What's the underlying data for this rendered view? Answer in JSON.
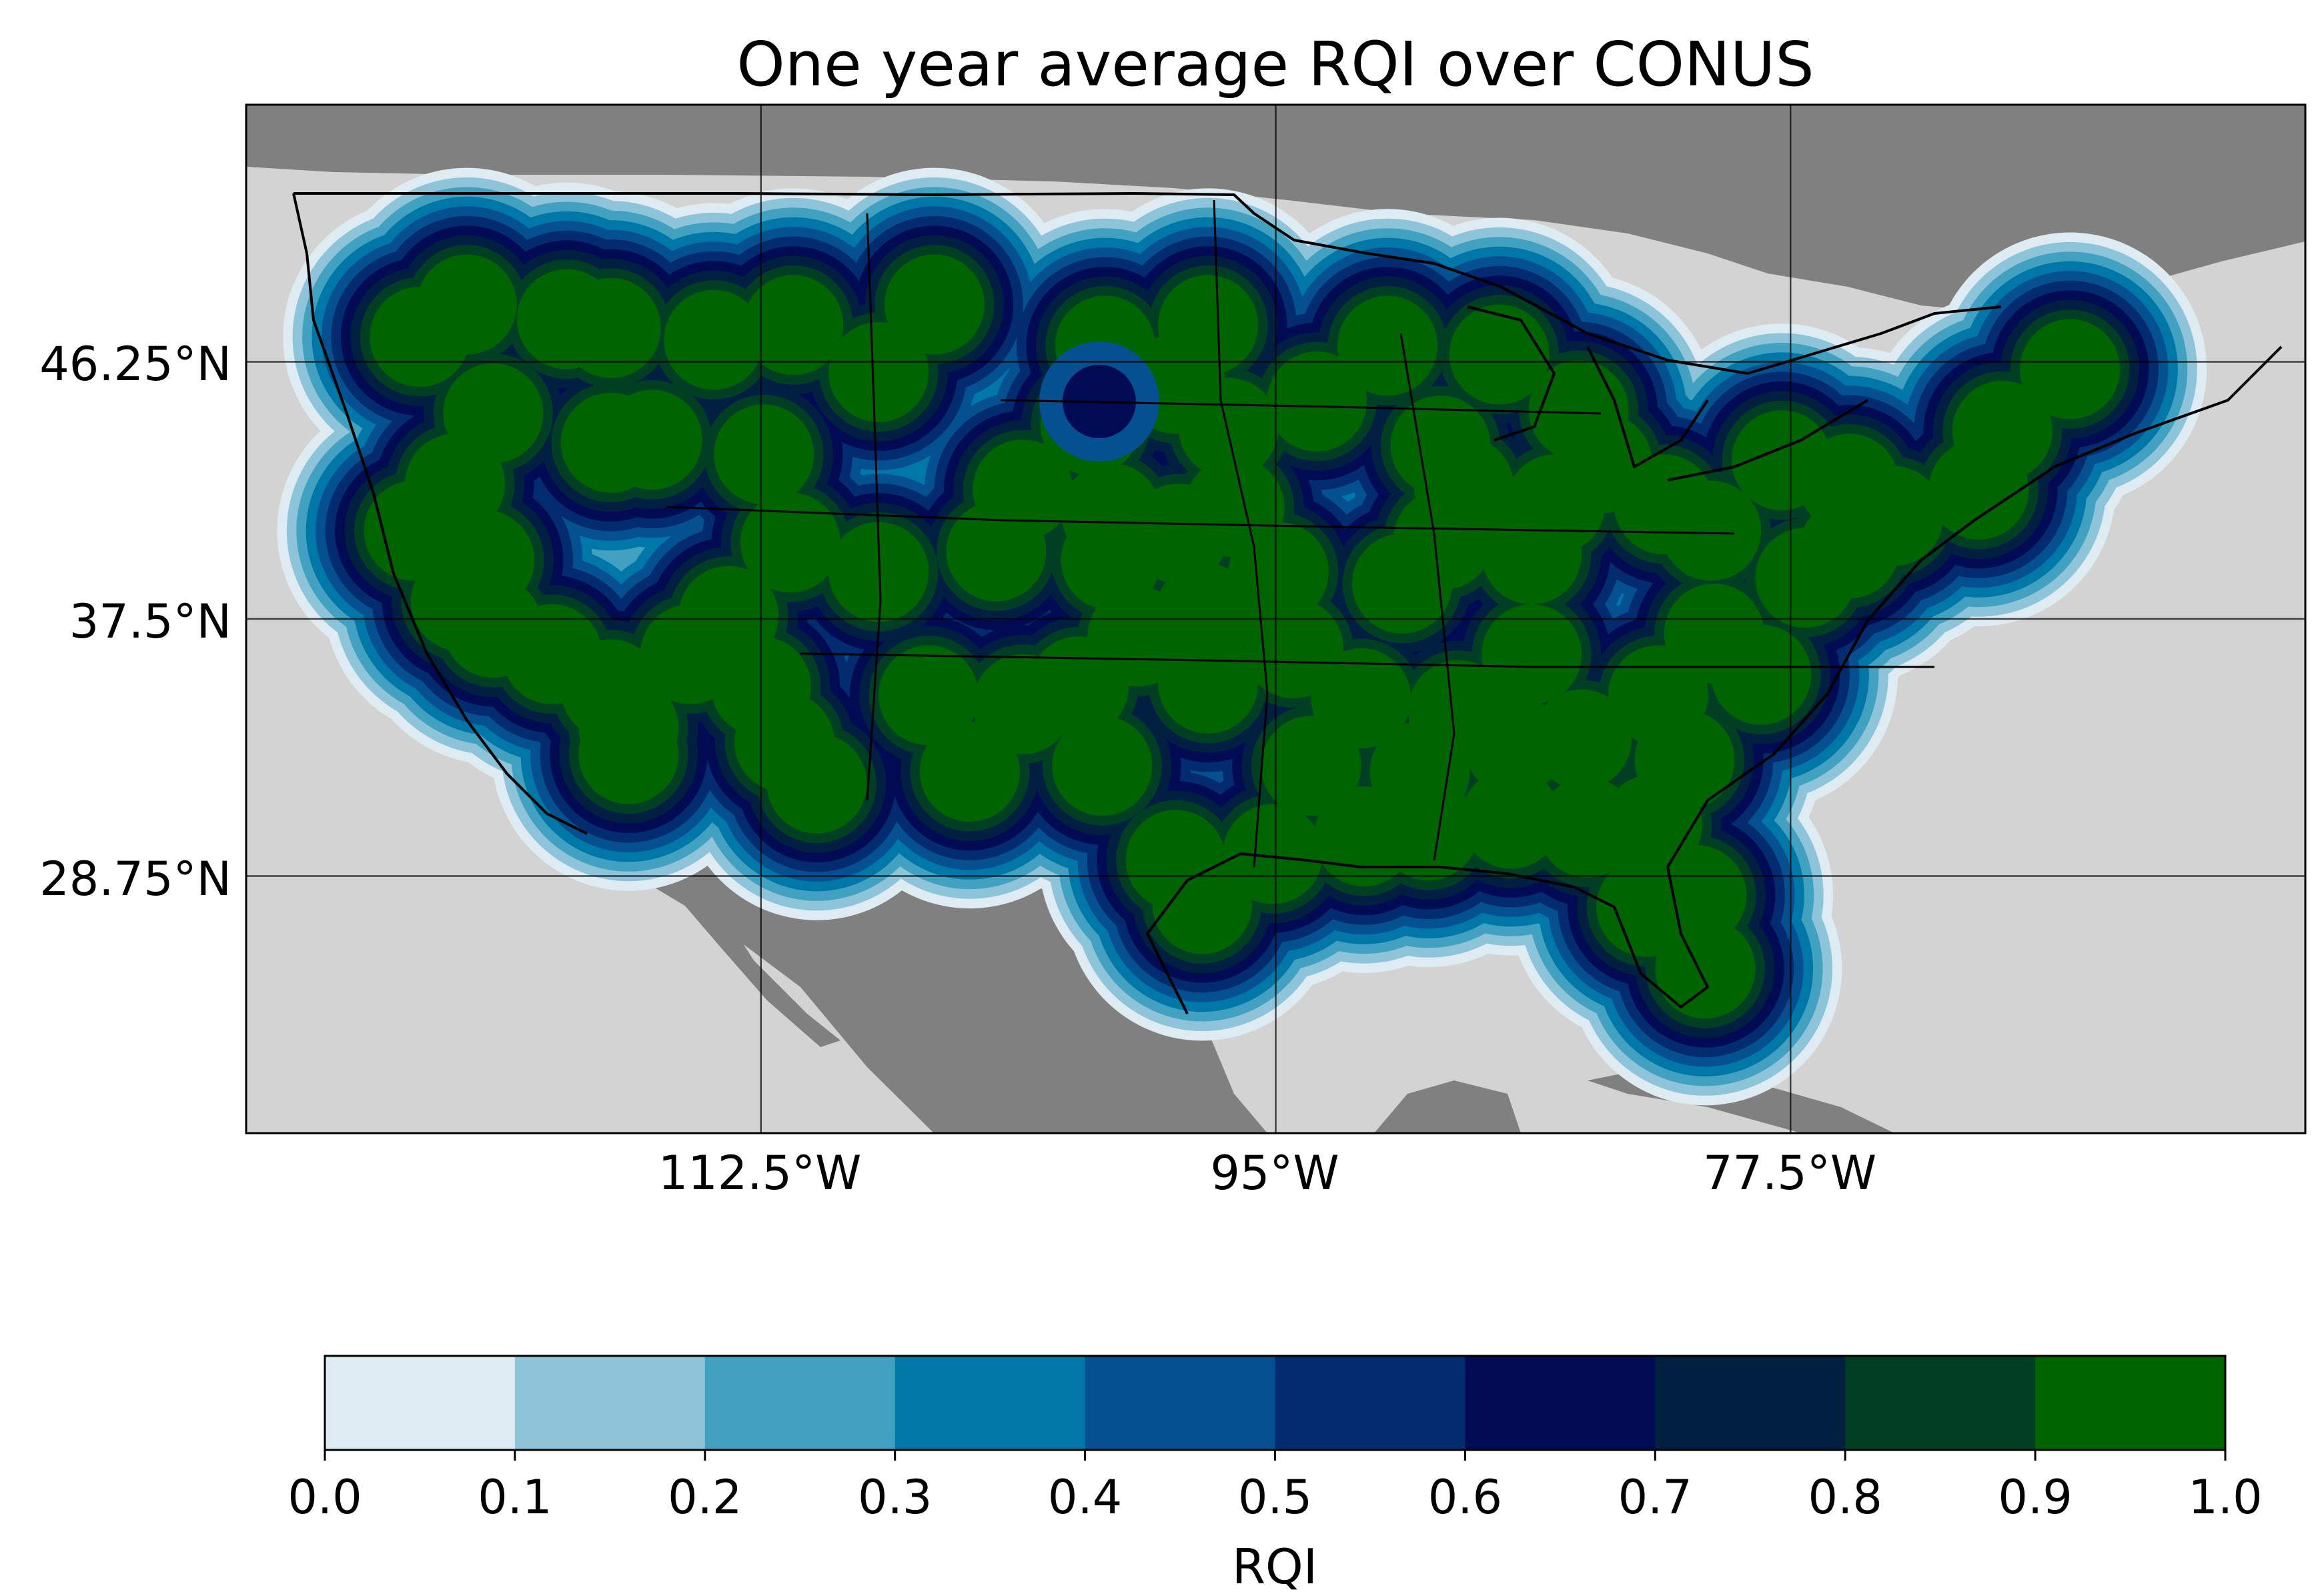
{
  "title": "One year average RQI over CONUS",
  "map": {
    "lat_ticks": [
      "46.25°N",
      "37.5°N",
      "28.75°N"
    ],
    "lon_ticks": [
      "112.5°W",
      "95°W",
      "77.5°W"
    ],
    "lat_values": [
      46.25,
      37.5,
      28.75
    ],
    "lon_values": [
      -112.5,
      -95,
      -77.5
    ],
    "extent": {
      "lon": [
        -130,
        -60
      ],
      "lat": [
        20,
        55
      ]
    },
    "colors": {
      "ocean": "#d3d3d3",
      "land_no_data": "#808080",
      "coast": "#000000",
      "grid": "#000000"
    }
  },
  "colorbar": {
    "label": "RQI",
    "ticks": [
      "0.0",
      "0.1",
      "0.2",
      "0.3",
      "0.4",
      "0.5",
      "0.6",
      "0.7",
      "0.8",
      "0.9",
      "1.0"
    ],
    "colors": [
      "#deebf2",
      "#8ec4d9",
      "#42a0c0",
      "#0077a6",
      "#055090",
      "#032c70",
      "#010b54",
      "#011f40",
      "#013f25",
      "#006400"
    ]
  },
  "chart_data": {
    "type": "heatmap",
    "title": "One year average RQI over CONUS",
    "xlabel": "",
    "ylabel": "",
    "colorbar_label": "RQI",
    "value_range": [
      0.0,
      1.0
    ],
    "levels": [
      0.0,
      0.1,
      0.2,
      0.3,
      0.4,
      0.5,
      0.6,
      0.7,
      0.8,
      0.9,
      1.0
    ],
    "x_ticks": [
      -112.5,
      -95.0,
      -77.5
    ],
    "y_ticks": [
      46.25,
      37.5,
      28.75
    ],
    "grid": true,
    "legend": "colorbar-bottom",
    "radar_sites": [
      [
        -124.1,
        47.1
      ],
      [
        -122.5,
        48.2
      ],
      [
        -119.1,
        47.7
      ],
      [
        -117.6,
        47.4
      ],
      [
        -116.2,
        43.6
      ],
      [
        -112.4,
        43.1
      ],
      [
        -108.5,
        45.9
      ],
      [
        -106.6,
        48.2
      ],
      [
        -111.4,
        47.5
      ],
      [
        -114.1,
        47.0
      ],
      [
        -117.6,
        43.5
      ],
      [
        -121.6,
        44.5
      ],
      [
        -122.9,
        42.1
      ],
      [
        -124.3,
        40.5
      ],
      [
        -121.9,
        39.5
      ],
      [
        -122.7,
        38.1
      ],
      [
        -121.6,
        37.2
      ],
      [
        -119.6,
        36.3
      ],
      [
        -117.6,
        35.1
      ],
      [
        -117.0,
        33.8
      ],
      [
        -117.0,
        32.9
      ],
      [
        -114.9,
        36.3
      ],
      [
        -112.5,
        35.2
      ],
      [
        -111.7,
        33.3
      ],
      [
        -110.6,
        31.9
      ],
      [
        -113.6,
        37.6
      ],
      [
        -111.5,
        40.1
      ],
      [
        -108.5,
        39.1
      ],
      [
        -104.5,
        39.8
      ],
      [
        -106.8,
        34.9
      ],
      [
        -105.4,
        32.3
      ],
      [
        -103.6,
        34.6
      ],
      [
        -101.7,
        35.2
      ],
      [
        -100.9,
        32.5
      ],
      [
        -98.4,
        29.3
      ],
      [
        -97.5,
        27.8
      ],
      [
        -95.1,
        29.5
      ],
      [
        -93.8,
        32.5
      ],
      [
        -92.1,
        34.8
      ],
      [
        -94.4,
        36.5
      ],
      [
        -97.3,
        35.3
      ],
      [
        -99.7,
        36.9
      ],
      [
        -97.4,
        37.7
      ],
      [
        -94.9,
        39.1
      ],
      [
        -100.6,
        39.5
      ],
      [
        -98.3,
        40.4
      ],
      [
        -96.4,
        41.3
      ],
      [
        -100.6,
        41.1
      ],
      [
        -103.6,
        41.9
      ],
      [
        -98.4,
        45.5
      ],
      [
        -96.6,
        44.0
      ],
      [
        -101.3,
        44.1
      ],
      [
        -100.8,
        46.8
      ],
      [
        -97.3,
        47.5
      ],
      [
        -93.6,
        44.9
      ],
      [
        -91.2,
        46.8
      ],
      [
        -89.4,
        43.4
      ],
      [
        -88.6,
        42.0
      ],
      [
        -89.3,
        40.2
      ],
      [
        -90.7,
        38.7
      ],
      [
        -86.3,
        39.7
      ],
      [
        -85.5,
        41.4
      ],
      [
        -83.9,
        42.8
      ],
      [
        -84.7,
        44.6
      ],
      [
        -87.4,
        46.5
      ],
      [
        -86.3,
        36.3
      ],
      [
        -86.9,
        33.2
      ],
      [
        -88.8,
        34.4
      ],
      [
        -90.1,
        32.3
      ],
      [
        -89.8,
        30.3
      ],
      [
        -92.0,
        30.1
      ],
      [
        -87.0,
        30.7
      ],
      [
        -84.4,
        30.4
      ],
      [
        -84.6,
        33.4
      ],
      [
        -81.1,
        32.7
      ],
      [
        -82.0,
        34.9
      ],
      [
        -78.5,
        35.6
      ],
      [
        -80.1,
        37.0
      ],
      [
        -77.0,
        38.9
      ],
      [
        -75.5,
        39.9
      ],
      [
        -74.0,
        41.0
      ],
      [
        -71.1,
        41.9
      ],
      [
        -70.3,
        43.9
      ],
      [
        -68.0,
        46.0
      ],
      [
        -75.5,
        42.1
      ],
      [
        -77.8,
        42.9
      ],
      [
        -81.8,
        41.4
      ],
      [
        -80.2,
        40.5
      ],
      [
        -82.2,
        30.5
      ],
      [
        -80.7,
        28.1
      ],
      [
        -82.4,
        27.7
      ],
      [
        -80.4,
        25.6
      ]
    ],
    "low_rqi_sites": [
      [
        -101.0,
        44.9
      ]
    ]
  }
}
